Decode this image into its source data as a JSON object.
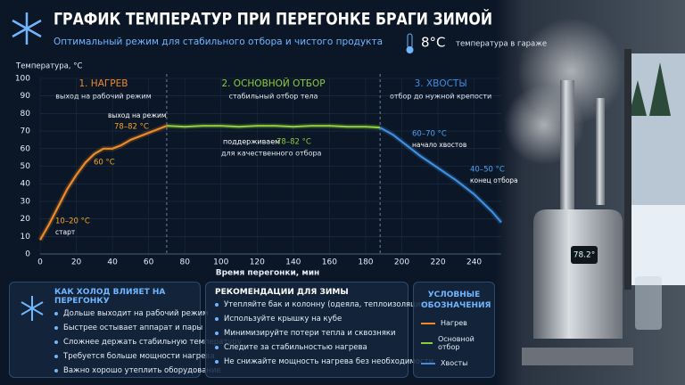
{
  "header": {
    "title": "ГРАФИК ТЕМПЕРАТУР ПРИ ПЕРЕГОНКЕ БРАГИ ЗИМОЙ",
    "subtitle": "Оптимальный режим для стабильного отбора и чистого продукта",
    "temperature": "8°C",
    "temperature_note": "температура в гараже"
  },
  "chart_data": {
    "type": "line",
    "y_label": "Температура, °С",
    "x_label": "Время перегонки, мин",
    "xlim": [
      0,
      255
    ],
    "ylim": [
      0,
      100
    ],
    "xticks": [
      0,
      20,
      40,
      60,
      80,
      100,
      120,
      140,
      160,
      180,
      200,
      220,
      240
    ],
    "yticks": [
      0,
      10,
      20,
      30,
      40,
      50,
      60,
      70,
      80,
      90,
      100
    ],
    "grid": true,
    "phase_boundaries": [
      70,
      188
    ],
    "phases": [
      {
        "title": "1. НАГРЕВ",
        "subtitle": "выход на рабочий режим"
      },
      {
        "title": "2. ОСНОВНОЙ ОТБОР",
        "subtitle": "стабильный отбор тела"
      },
      {
        "title": "3. ХВОСТЫ",
        "subtitle": "отбор до нужной крепости"
      }
    ],
    "annotations": [
      "выход на режим",
      "78–82 °C",
      "60 °C",
      "10–20 °C",
      "старт",
      "поддерживаем",
      "78–82 °C",
      "для качественного отбора",
      "60–70 °C",
      "начало хвостов",
      "40–50 °C",
      "конец отбора"
    ],
    "series": [
      {
        "name": "Нагрев",
        "color": "#f08a24",
        "x": [
          0,
          5,
          10,
          15,
          20,
          25,
          30,
          35,
          40,
          45,
          50,
          55,
          60,
          65,
          70
        ],
        "values": [
          8,
          17,
          27,
          37,
          45,
          52,
          57,
          60,
          60,
          62,
          65,
          67,
          69,
          71,
          73
        ]
      },
      {
        "name": "Основной отбор",
        "color": "#8ccf3a",
        "x": [
          70,
          80,
          90,
          100,
          110,
          120,
          130,
          140,
          150,
          160,
          170,
          180,
          188
        ],
        "values": [
          73,
          72.5,
          73,
          73,
          72.5,
          73,
          73,
          72.5,
          73,
          73,
          72.5,
          72.5,
          72
        ]
      },
      {
        "name": "Хвосты",
        "color": "#3d8fe0",
        "x": [
          188,
          195,
          200,
          210,
          220,
          230,
          240,
          250,
          255
        ],
        "values": [
          72,
          68,
          64,
          56,
          49,
          42,
          34,
          24,
          18
        ]
      }
    ]
  },
  "panels": {
    "cold": {
      "title": "КАК ХОЛОД ВЛИЯЕТ НА ПЕРЕГОНКУ",
      "items": [
        "Дольше выходит на рабочий режим",
        "Быстрее остывает аппарат и пары",
        "Сложнее держать стабильную температуру",
        "Требуется больше мощности нагрева",
        "Важно хорошо утеплить оборудование"
      ]
    },
    "tips": {
      "title": "РЕКОМЕНДАЦИИ ДЛЯ ЗИМЫ",
      "items": [
        "Утепляйте бак и колонну (одеяла, теплоизоляция)",
        "Используйте крышку на кубе",
        "Минимизируйте потери тепла и сквозняки",
        "Следите за стабильностью нагрева",
        "Не снижайте мощность нагрева без необходимости"
      ]
    },
    "legend_title": "УСЛОВНЫЕ ОБОЗНАЧЕНИЯ"
  },
  "photo_display": "78.2°"
}
